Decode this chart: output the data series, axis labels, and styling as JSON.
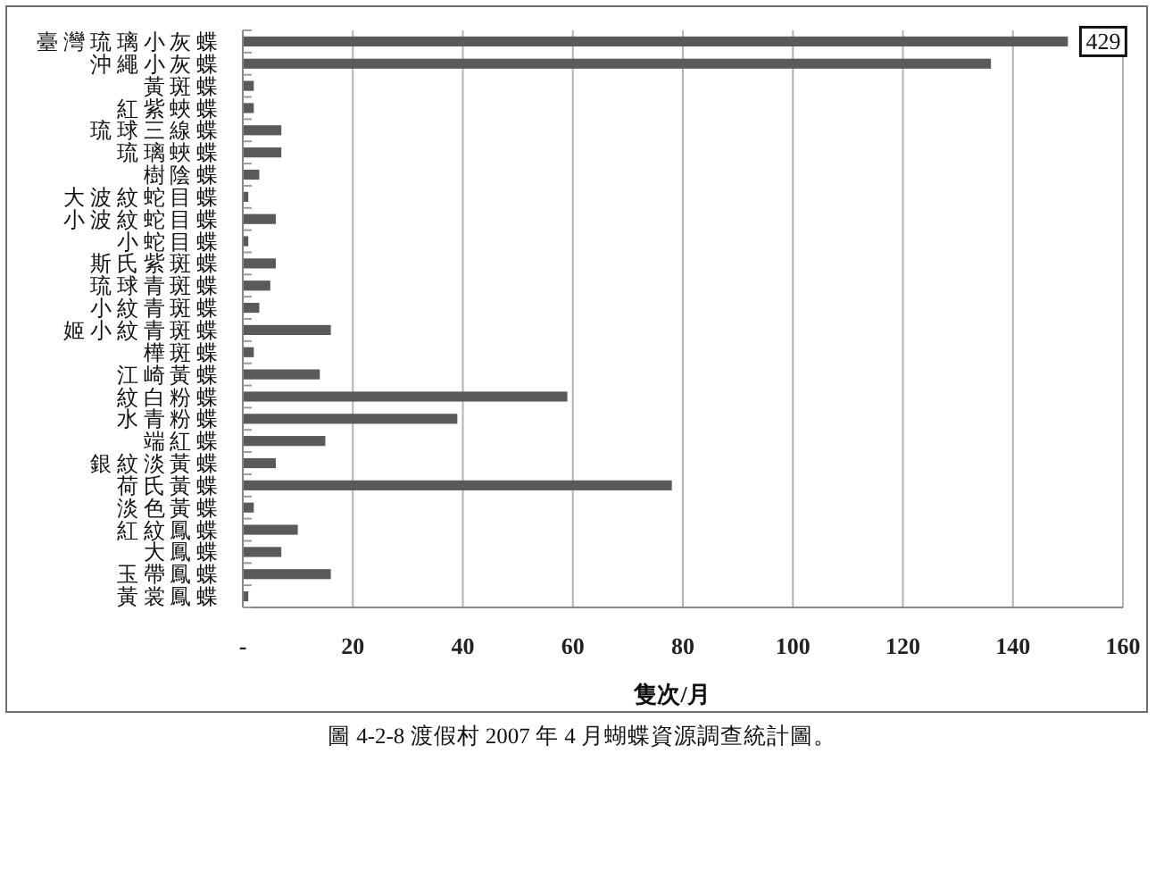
{
  "chart_data": {
    "type": "bar",
    "orientation": "horizontal",
    "categories": [
      "臺灣琉璃小灰蝶",
      "沖繩小灰蝶",
      "黃斑蝶",
      "紅紫蛺蝶",
      "琉球三線蝶",
      "琉璃蛺蝶",
      "樹陰蝶",
      "大波紋蛇目蝶",
      "小波紋蛇目蝶",
      "小蛇目蝶",
      "斯氏紫斑蝶",
      "琉球青斑蝶",
      "小紋青斑蝶",
      "姬小紋青斑蝶",
      "樺斑蝶",
      "江崎黃蝶",
      "紋白粉蝶",
      "水青粉蝶",
      "端紅蝶",
      "銀紋淡黃蝶",
      "荷氏黃蝶",
      "淡色黃蝶",
      "紅紋鳳蝶",
      "大鳳蝶",
      "玉帶鳳蝶",
      "黃裳鳳蝶"
    ],
    "values": [
      150,
      136,
      2,
      2,
      7,
      7,
      3,
      1,
      6,
      1,
      6,
      5,
      3,
      16,
      2,
      14,
      59,
      39,
      15,
      6,
      78,
      2,
      10,
      7,
      16,
      1
    ],
    "color": "#5a5a5a",
    "xlim": [
      0,
      160
    ],
    "xticks": [
      {
        "value": 0,
        "label": "-"
      },
      20,
      40,
      60,
      80,
      100,
      120,
      140,
      160
    ],
    "xlabel": "隻次/月",
    "grid": "x",
    "annotations": [
      {
        "text": "429",
        "x": 150,
        "y": "臺灣琉璃小灰蝶"
      },
      "圖 4-2-8 渡假村 2007 年 4 月蝴蝶資源調查統計圖。"
    ]
  }
}
